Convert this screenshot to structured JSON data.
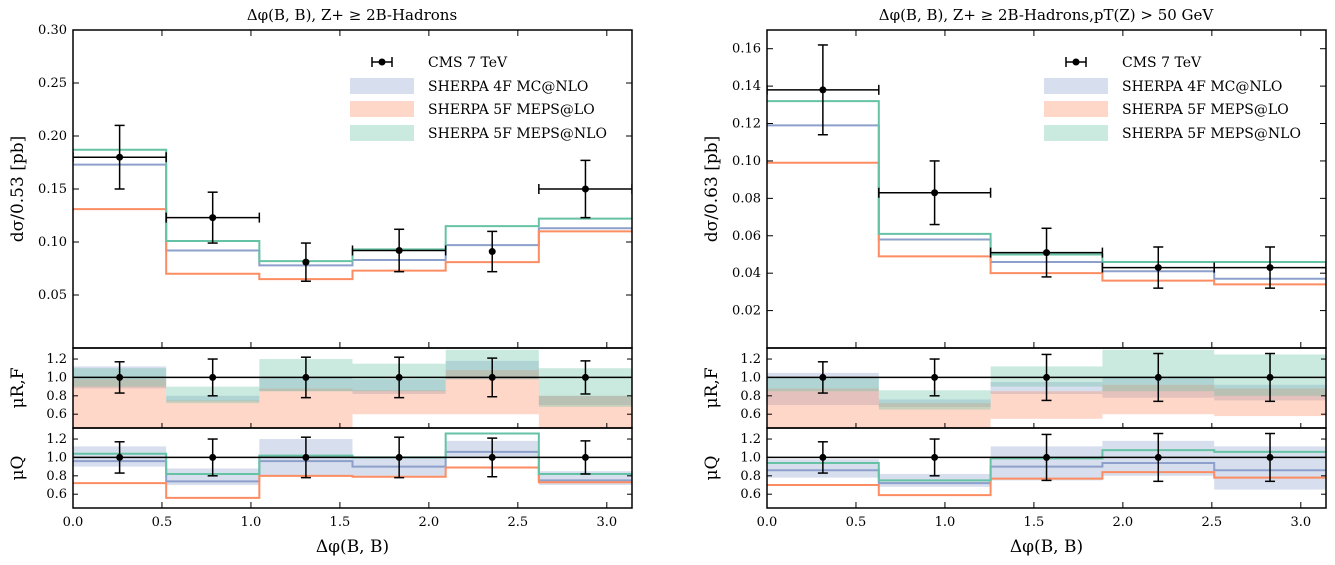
{
  "colors": {
    "mc": "#8da0cb",
    "lo": "#fc8d62",
    "nlo": "#66c2a5",
    "data": "#000000"
  },
  "legend": {
    "data": "CMS 7 TeV",
    "mc": "SHERPA 4F MC@NLO",
    "lo": "SHERPA 5F MEPS@LO",
    "nlo": "SHERPA 5F MEPS@NLO"
  },
  "chart_data": [
    {
      "type": "line",
      "title": "Δφ(B, B), Z+ ≥ 2B-Hadrons",
      "xlabel": "Δφ(B, B)",
      "ylabel": "dσ/0.53 [pb]",
      "ylabel_ratio1": "μR,F",
      "ylabel_ratio2": "μQ",
      "xlim": [
        0,
        3.1416
      ],
      "ylim": [
        0,
        0.3
      ],
      "xticks": [
        "0.0",
        "0.5",
        "1.0",
        "1.5",
        "2.0",
        "2.5",
        "3.0"
      ],
      "yticks": [
        "0.05",
        "0.10",
        "0.15",
        "0.20",
        "0.25",
        "0.30"
      ],
      "ratio_ylim": [
        0.45,
        1.32
      ],
      "ratio_yticks": [
        "0.6",
        "0.8",
        "1.0",
        "1.2"
      ],
      "bin_edges": [
        0,
        0.5236,
        1.0472,
        1.5708,
        2.0944,
        2.618,
        3.1416
      ],
      "data": {
        "x": [
          0.262,
          0.785,
          1.309,
          1.833,
          2.356,
          2.88
        ],
        "y": [
          0.18,
          0.123,
          0.081,
          0.092,
          0.091,
          0.15
        ],
        "yerr": [
          0.03,
          0.024,
          0.018,
          0.02,
          0.019,
          0.027
        ],
        "xerr_shown": [
          true,
          true,
          false,
          true,
          false,
          true
        ]
      },
      "series": [
        {
          "name": "SHERPA 4F MC@NLO",
          "values": [
            0.173,
            0.092,
            0.078,
            0.083,
            0.097,
            0.113
          ]
        },
        {
          "name": "SHERPA 5F MEPS@LO",
          "values": [
            0.131,
            0.07,
            0.065,
            0.073,
            0.081,
            0.11
          ]
        },
        {
          "name": "SHERPA 5F MEPS@NLO",
          "values": [
            0.187,
            0.101,
            0.082,
            0.093,
            0.115,
            0.122
          ]
        }
      ],
      "ratio_muRF": {
        "data_yerr": [
          0.17,
          0.2,
          0.22,
          0.22,
          0.21,
          0.18
        ],
        "bands": [
          {
            "name": "SHERPA 4F MC@NLO",
            "lo": [
              0.88,
              0.74,
              0.85,
              0.82,
              0.98,
              0.7
            ],
            "hi": [
              1.12,
              0.8,
              1.0,
              0.98,
              1.18,
              0.8
            ]
          },
          {
            "name": "SHERPA 5F MEPS@LO",
            "lo": [
              0.4,
              0.4,
              0.4,
              0.6,
              0.6,
              0.4
            ],
            "hi": [
              0.98,
              0.75,
              0.88,
              0.86,
              1.08,
              0.8
            ]
          },
          {
            "name": "SHERPA 5F MEPS@NLO",
            "lo": [
              0.9,
              0.72,
              0.85,
              0.85,
              0.98,
              0.68
            ],
            "hi": [
              1.1,
              0.9,
              1.2,
              1.15,
              1.3,
              1.1
            ]
          }
        ]
      },
      "ratio_muQ": {
        "data_yerr": [
          0.17,
          0.2,
          0.22,
          0.22,
          0.21,
          0.18
        ],
        "mc": {
          "central": [
            0.96,
            0.74,
            0.96,
            0.9,
            1.06,
            0.75
          ],
          "lo": [
            0.9,
            0.7,
            0.8,
            0.8,
            1.0,
            0.7
          ],
          "hi": [
            1.12,
            0.88,
            1.2,
            1.0,
            1.18,
            0.85
          ]
        },
        "lo_line": [
          0.72,
          0.56,
          0.8,
          0.79,
          0.89,
          0.73
        ],
        "nlo_line": [
          1.04,
          0.82,
          1.02,
          1.0,
          1.26,
          0.82
        ]
      }
    },
    {
      "type": "line",
      "title": "Δφ(B, B), Z+ ≥ 2B-Hadrons,pT(Z) > 50 GeV",
      "xlabel": "Δφ(B, B)",
      "ylabel": "dσ/0.63 [pb]",
      "ylabel_ratio1": "μR,F",
      "ylabel_ratio2": "μQ",
      "xlim": [
        0,
        3.1416
      ],
      "ylim": [
        0,
        0.17
      ],
      "xticks": [
        "0.0",
        "0.5",
        "1.0",
        "1.5",
        "2.0",
        "2.5",
        "3.0"
      ],
      "yticks": [
        "0.02",
        "0.04",
        "0.06",
        "0.08",
        "0.10",
        "0.12",
        "0.14",
        "0.16"
      ],
      "ratio_ylim": [
        0.45,
        1.32
      ],
      "ratio_yticks": [
        "0.6",
        "0.8",
        "1.0",
        "1.2"
      ],
      "bin_edges": [
        0,
        0.6283,
        1.2566,
        1.885,
        2.5133,
        3.1416
      ],
      "data": {
        "x": [
          0.314,
          0.942,
          1.571,
          2.199,
          2.827
        ],
        "y": [
          0.138,
          0.083,
          0.051,
          0.043,
          0.043
        ],
        "yerr": [
          0.024,
          0.017,
          0.013,
          0.011,
          0.011
        ],
        "xerr_shown": [
          true,
          true,
          true,
          true,
          true
        ]
      },
      "series": [
        {
          "name": "SHERPA 4F MC@NLO",
          "values": [
            0.119,
            0.058,
            0.046,
            0.041,
            0.037
          ]
        },
        {
          "name": "SHERPA 5F MEPS@LO",
          "values": [
            0.099,
            0.049,
            0.04,
            0.036,
            0.034
          ]
        },
        {
          "name": "SHERPA 5F MEPS@NLO",
          "values": [
            0.132,
            0.061,
            0.05,
            0.046,
            0.046
          ]
        }
      ],
      "ratio_muRF": {
        "data_yerr": [
          0.17,
          0.2,
          0.25,
          0.26,
          0.26
        ],
        "bands": [
          {
            "name": "SHERPA 4F MC@NLO",
            "lo": [
              0.7,
              0.68,
              0.82,
              0.78,
              0.75
            ],
            "hi": [
              1.05,
              0.76,
              0.95,
              1.0,
              0.92
            ]
          },
          {
            "name": "SHERPA 5F MEPS@LO",
            "lo": [
              0.4,
              0.4,
              0.55,
              0.6,
              0.58
            ],
            "hi": [
              0.88,
              0.72,
              0.85,
              0.92,
              0.88
            ]
          },
          {
            "name": "SHERPA 5F MEPS@NLO",
            "lo": [
              0.85,
              0.65,
              0.9,
              0.85,
              0.8
            ],
            "hi": [
              1.0,
              0.86,
              1.12,
              1.3,
              1.25
            ]
          }
        ]
      },
      "ratio_muQ": {
        "data_yerr": [
          0.17,
          0.2,
          0.25,
          0.26,
          0.26
        ],
        "mc": {
          "central": [
            0.86,
            0.72,
            0.9,
            0.94,
            0.86
          ],
          "lo": [
            0.78,
            0.68,
            0.75,
            0.8,
            0.65
          ],
          "hi": [
            0.98,
            0.82,
            1.12,
            1.18,
            1.12
          ]
        },
        "lo_line": [
          0.7,
          0.59,
          0.77,
          0.84,
          0.78
        ],
        "nlo_line": [
          0.94,
          0.75,
          0.99,
          1.08,
          1.06
        ]
      }
    }
  ]
}
